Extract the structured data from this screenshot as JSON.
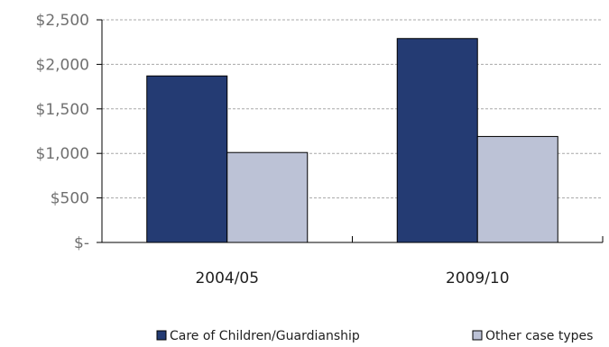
{
  "chart_data": {
    "type": "bar",
    "categories": [
      "2004/05",
      "2009/10"
    ],
    "series": [
      {
        "name": "Care of Children/Guardianship",
        "color": "#243b73",
        "values": [
          1870,
          2290
        ]
      },
      {
        "name": "Other case types",
        "color": "#bcc2d6",
        "values": [
          1010,
          1190
        ]
      }
    ],
    "ylim": [
      0,
      2500
    ],
    "yticks": [
      0,
      500,
      1000,
      1500,
      2000,
      2500
    ],
    "ytick_labels": [
      "$-",
      "$500",
      "$1,000",
      "$1,500",
      "$2,000",
      "$2,500"
    ],
    "grid": true,
    "legend_position": "bottom",
    "title": "",
    "xlabel": "",
    "ylabel": ""
  }
}
